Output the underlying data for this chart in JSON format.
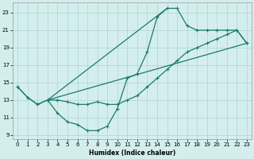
{
  "xlabel": "Humidex (Indice chaleur)",
  "bg_color": "#d4eeee",
  "line_color": "#1a7a6e",
  "grid_color": "#aed4d4",
  "xlim": [
    -0.5,
    23.5
  ],
  "ylim": [
    8.5,
    24.2
  ],
  "xticks": [
    0,
    1,
    2,
    3,
    4,
    5,
    6,
    7,
    8,
    9,
    10,
    11,
    12,
    13,
    14,
    15,
    16,
    17,
    18,
    19,
    20,
    21,
    22,
    23
  ],
  "yticks": [
    9,
    11,
    13,
    15,
    17,
    19,
    21,
    23
  ],
  "curve1_x": [
    0,
    1,
    2,
    3,
    4,
    5,
    6,
    7,
    8,
    9,
    10,
    11,
    12,
    13,
    14,
    15,
    16,
    17,
    18,
    19,
    20,
    21,
    22,
    23
  ],
  "curve1_y": [
    14.5,
    13.3,
    12.5,
    13.0,
    11.5,
    10.5,
    10.2,
    9.5,
    9.5,
    10.0,
    12.0,
    15.5,
    16.0,
    18.5,
    22.5,
    23.5,
    23.5,
    21.5,
    21.0,
    21.0,
    21.0,
    21.0,
    21.0,
    19.5
  ],
  "curve2_x": [
    0,
    1,
    2,
    3,
    4,
    5,
    6,
    7,
    8,
    9,
    10,
    11,
    12,
    13,
    14,
    15,
    16,
    17,
    18,
    19,
    20,
    21,
    22,
    23
  ],
  "curve2_y": [
    14.5,
    13.3,
    12.5,
    13.0,
    13.0,
    12.8,
    12.5,
    12.5,
    12.8,
    12.5,
    12.5,
    13.0,
    13.5,
    14.5,
    15.5,
    16.5,
    17.5,
    18.5,
    19.0,
    19.5,
    20.0,
    20.5,
    21.0,
    19.5
  ],
  "line3_x": [
    3,
    23
  ],
  "line3_y": [
    13.0,
    19.5
  ],
  "line4_x": [
    3,
    15
  ],
  "line4_y": [
    13.0,
    23.5
  ]
}
